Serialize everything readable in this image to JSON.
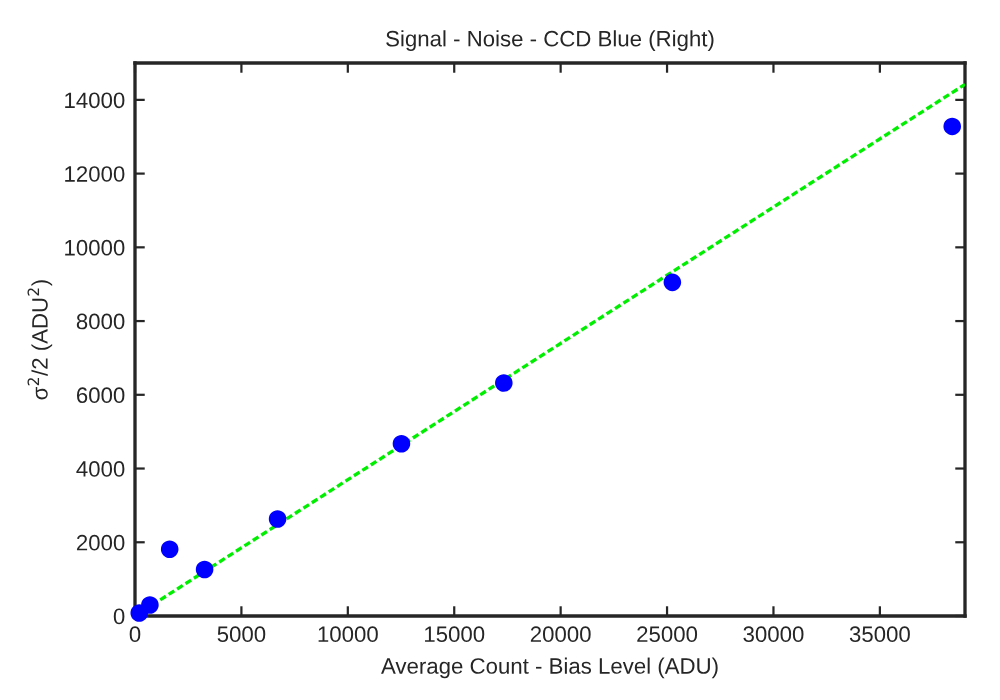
{
  "chart_data": {
    "type": "scatter",
    "title": "Signal - Noise - CCD Blue (Right)",
    "xlabel": "Average Count - Bias Level (ADU)",
    "ylabel": "σ$^{2}$/2 (ADU$^{2}$)",
    "xlim": [
      0,
      39000
    ],
    "ylim": [
      0,
      15000
    ],
    "xticks": [
      0,
      5000,
      10000,
      15000,
      20000,
      25000,
      30000,
      35000
    ],
    "yticks": [
      0,
      2000,
      4000,
      6000,
      8000,
      10000,
      12000,
      14000
    ],
    "grid": false,
    "legend": false,
    "series": [
      {
        "color": "#0000ff",
        "marker": "circle",
        "x": [
          200,
          700,
          1630,
          3270,
          6700,
          12520,
          17330,
          25250,
          38400
        ],
        "values": [
          80,
          300,
          1810,
          1260,
          2630,
          4670,
          6320,
          9050,
          13280
        ]
      },
      {
        "type": "line",
        "color": "#00ee00",
        "marker": "none",
        "line_style": "dashed",
        "x": [
          0,
          39000
        ],
        "values": [
          0,
          14420
        ]
      }
    ]
  }
}
